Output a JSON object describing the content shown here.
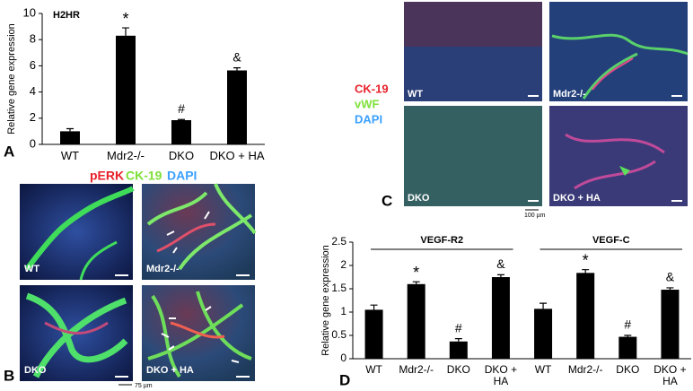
{
  "chart_data": [
    {
      "type": "bar",
      "title": "H2HR",
      "y_label": "Relative gene expression",
      "categories": [
        "WT",
        "Mdr2-/-",
        "DKO",
        "DKO + HA"
      ],
      "values": [
        1.0,
        8.3,
        1.85,
        5.65
      ],
      "errors": [
        0.2,
        0.6,
        0.05,
        0.2
      ],
      "annotations": [
        null,
        "*",
        "#",
        "&"
      ],
      "color": "#000000",
      "ylim": [
        0,
        10
      ],
      "yticks": [
        0,
        2,
        4,
        6,
        8,
        10
      ]
    },
    {
      "type": "bar",
      "y_label": "Relative gene expression",
      "groups": [
        "VEGF-R2",
        "VEGF-C"
      ],
      "categories": [
        "WT",
        "Mdr2-/-",
        "DKO",
        "DKO + HA",
        "WT",
        "Mdr2-/-",
        "DKO",
        "DKO + HA"
      ],
      "values": [
        1.05,
        1.6,
        0.37,
        1.75,
        1.07,
        1.84,
        0.47,
        1.48
      ],
      "errors": [
        0.1,
        0.05,
        0.06,
        0.05,
        0.12,
        0.07,
        0.03,
        0.04
      ],
      "annotations": [
        null,
        "*",
        "#",
        "&",
        null,
        "*",
        "#",
        "&"
      ],
      "color": "#000000",
      "ylim": [
        0,
        2.5
      ],
      "yticks": [
        0,
        0.5,
        1,
        1.5,
        2,
        2.5
      ]
    }
  ],
  "panel_letters": [
    "A",
    "B",
    "C",
    "D"
  ],
  "image_panels": {
    "B": {
      "legend": [
        "pERK",
        "CK-19",
        "DAPI"
      ],
      "labels": [
        "WT",
        "Mdr2-/-",
        "DKO",
        "DKO + HA"
      ],
      "scale": "75 µm"
    },
    "C": {
      "legend": [
        "CK-19",
        "vWF",
        "DAPI"
      ],
      "labels": [
        "WT",
        "Mdr2-/-",
        "DKO",
        "DKO + HA"
      ],
      "scale": "100 µm"
    }
  }
}
